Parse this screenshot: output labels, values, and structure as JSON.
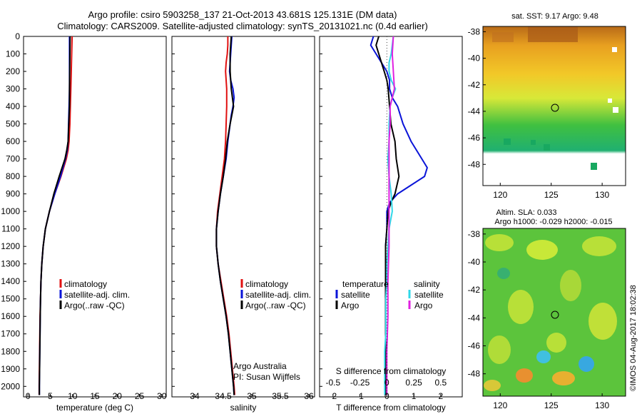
{
  "header": {
    "line1": "Argo profile: csiro 5903258_137 21-Oct-2013 43.681S 125.131E (DM data)",
    "line2": "Climatology: CARS2009. Satellite-adjusted climatology: synTS_20131021.nc (0.4d earlier)"
  },
  "colors": {
    "climatology": "#e01010",
    "satellite": "#0a14d8",
    "argo": "#000000",
    "sat_salinity": "#30d8e8",
    "argo_salinity": "#e020e0"
  },
  "depth_ticks": [
    "0",
    "100",
    "200",
    "300",
    "400",
    "500",
    "600",
    "700",
    "800",
    "900",
    "1000",
    "1100",
    "1200",
    "1300",
    "1400",
    "1500",
    "1600",
    "1700",
    "1800",
    "1900",
    "2000"
  ],
  "legend": {
    "climatology": "climatology",
    "satellite": "satellite-adj. clim.",
    "argo": "Argo(..raw -QC)"
  },
  "diff_legend": {
    "temperature": "temperature",
    "salinity": "salinity",
    "satellite": "satellite",
    "argo": "Argo"
  },
  "annotation": {
    "line1": "Argo Australia",
    "line2": "PI: Susan Wijffels"
  },
  "map_sst": {
    "title": "sat. SST: 9.17 Argo: 9.48",
    "yticks": [
      "-38",
      "-40",
      "-42",
      "-44",
      "-46",
      "-48"
    ],
    "xticks": [
      "120",
      "125",
      "130"
    ]
  },
  "map_sla": {
    "title1": "Altim. SLA: 0.033",
    "title2": "Argo h1000: -0.029 h2000: -0.015",
    "yticks": [
      "-38",
      "-40",
      "-42",
      "-44",
      "-46",
      "-48"
    ],
    "xticks": [
      "120",
      "125",
      "130"
    ]
  },
  "credit": "©IMOS 04-Aug-2017 18:02:38",
  "chart_data": [
    {
      "type": "line",
      "xlabel": "temperature (deg C)",
      "xlim": [
        -1,
        31
      ],
      "ylim": [
        2060,
        0
      ],
      "xticks": [
        "0",
        "5",
        "10",
        "15",
        "20",
        "25",
        "30"
      ],
      "series": [
        {
          "name": "climatology",
          "depth": [
            0,
            100,
            200,
            300,
            400,
            500,
            600,
            650,
            700,
            800,
            900,
            1000,
            1100,
            1200,
            1300,
            1400,
            1500,
            1600,
            1700,
            1800,
            1900,
            2000,
            2050
          ],
          "values": [
            9.9,
            9.8,
            9.7,
            9.6,
            9.5,
            9.4,
            9.2,
            9.0,
            8.6,
            7.4,
            6.0,
            4.8,
            3.9,
            3.4,
            3.1,
            2.9,
            2.8,
            2.7,
            2.65,
            2.6,
            2.55,
            2.5,
            2.5
          ]
        },
        {
          "name": "satellite-adj. clim.",
          "depth": [
            0,
            100,
            200,
            300,
            400,
            500,
            600,
            650,
            700,
            800,
            900,
            1000,
            1100,
            1200,
            1300,
            1400,
            1500,
            1600,
            1700,
            1800,
            1900,
            2000,
            2050
          ],
          "values": [
            9.3,
            9.3,
            9.3,
            9.3,
            9.2,
            9.1,
            9.0,
            8.8,
            8.4,
            7.3,
            6.0,
            4.8,
            3.9,
            3.4,
            3.1,
            2.9,
            2.8,
            2.75,
            2.7,
            2.65,
            2.6,
            2.55,
            2.55
          ]
        },
        {
          "name": "Argo(..raw -QC)",
          "depth": [
            0,
            100,
            200,
            300,
            400,
            500,
            600,
            650,
            700,
            800,
            900,
            1000,
            1100,
            1200,
            1300,
            1400,
            1500,
            1600,
            1700,
            1800,
            1900,
            2000,
            2050
          ],
          "values": [
            9.45,
            9.4,
            9.35,
            9.3,
            9.3,
            9.15,
            9.0,
            8.7,
            8.3,
            7.0,
            5.8,
            4.8,
            3.9,
            3.4,
            3.1,
            2.9,
            2.8,
            2.75,
            2.7,
            2.65,
            2.6,
            2.55,
            2.55
          ]
        }
      ]
    },
    {
      "type": "line",
      "xlabel": "salinity",
      "xlim": [
        33.6,
        36.1
      ],
      "ylim": [
        2060,
        0
      ],
      "xticks": [
        "34",
        "34.5",
        "35",
        "35.5",
        "36"
      ],
      "series": [
        {
          "name": "climatology",
          "depth": [
            0,
            50,
            100,
            150,
            200,
            300,
            400,
            500,
            600,
            700,
            800,
            900,
            1000,
            1100,
            1200,
            1300,
            1400,
            1500,
            1600,
            1700,
            1800,
            1900,
            2000,
            2050
          ],
          "values": [
            34.58,
            34.58,
            34.57,
            34.55,
            34.54,
            34.56,
            34.56,
            34.55,
            34.54,
            34.52,
            34.48,
            34.44,
            34.4,
            34.38,
            34.38,
            34.41,
            34.46,
            34.51,
            34.56,
            34.6,
            34.63,
            34.66,
            34.69,
            34.7
          ]
        },
        {
          "name": "satellite-adj. clim.",
          "depth": [
            0,
            50,
            100,
            150,
            200,
            250,
            300,
            350,
            400,
            450,
            500,
            600,
            700,
            800,
            900,
            1000,
            1100,
            1200,
            1300,
            1400,
            1500,
            1600,
            1700,
            1800,
            1900,
            2000,
            2050
          ],
          "values": [
            34.65,
            34.64,
            34.63,
            34.62,
            34.61,
            34.63,
            34.67,
            34.69,
            34.67,
            34.64,
            34.62,
            34.58,
            34.55,
            34.5,
            34.45,
            34.41,
            34.38,
            34.38,
            34.41,
            34.45,
            34.5,
            34.55,
            34.59,
            34.62,
            34.65,
            34.68,
            34.69
          ]
        },
        {
          "name": "Argo(..raw -QC)",
          "depth": [
            0,
            50,
            100,
            150,
            200,
            300,
            350,
            400,
            450,
            500,
            600,
            700,
            800,
            900,
            1000,
            1100,
            1200,
            1300,
            1400,
            1500,
            1600,
            1700,
            1800,
            1900,
            2000,
            2050
          ],
          "values": [
            34.64,
            34.63,
            34.62,
            34.62,
            34.62,
            34.64,
            34.66,
            34.68,
            34.65,
            34.62,
            34.57,
            34.54,
            34.5,
            34.45,
            34.41,
            34.38,
            34.38,
            34.41,
            34.45,
            34.5,
            34.55,
            34.59,
            34.62,
            34.65,
            34.68,
            34.69
          ]
        }
      ]
    },
    {
      "type": "line",
      "xlabel": "T difference from climatology",
      "xlabel_top": "S difference from climatology",
      "xlim": [
        -2.5,
        2.8
      ],
      "ylim": [
        2060,
        0
      ],
      "xticks": [
        "-2",
        "-1",
        "0",
        "1",
        "2"
      ],
      "xticks_top": [
        "-0.5",
        "-0.25",
        "0",
        "0.25",
        "0.5"
      ],
      "series": [
        {
          "name": "temperature satellite",
          "depth": [
            0,
            50,
            100,
            150,
            200,
            250,
            300,
            350,
            400,
            450,
            500,
            600,
            700,
            750,
            800,
            850,
            900,
            950,
            1000,
            1100,
            1200,
            1300,
            1400,
            1500,
            1600,
            1700,
            1800,
            1900,
            2000,
            2050
          ],
          "values": [
            -0.5,
            -0.6,
            -0.4,
            -0.2,
            0,
            0.1,
            0.1,
            0.2,
            0.4,
            0.5,
            0.6,
            0.9,
            1.3,
            1.5,
            1.4,
            0.9,
            0.4,
            0.1,
            0,
            0,
            -0.05,
            -0.05,
            -0.05,
            -0.05,
            -0.05,
            -0.05,
            -0.05,
            -0.05,
            -0.05,
            -0.05
          ]
        },
        {
          "name": "temperature Argo",
          "depth": [
            0,
            50,
            100,
            150,
            200,
            250,
            300,
            400,
            500,
            600,
            700,
            800,
            900,
            950,
            1000,
            1100,
            1200,
            1300,
            1400,
            1500,
            1600,
            1700,
            1800,
            1900,
            2000,
            2050
          ],
          "values": [
            -0.3,
            -0.4,
            -0.3,
            -0.2,
            -0.1,
            0,
            0.05,
            0.1,
            0.15,
            0.3,
            0.35,
            0.45,
            0.3,
            0.15,
            0.05,
            0,
            -0.05,
            -0.05,
            -0.05,
            -0.05,
            -0.05,
            -0.05,
            -0.05,
            -0.05,
            -0.05,
            -0.05
          ]
        },
        {
          "name": "salinity satellite",
          "depth": [
            0,
            50,
            100,
            150,
            200,
            250,
            300,
            350,
            400,
            500,
            600,
            700,
            800,
            900,
            1000,
            1100,
            1200,
            1300,
            1400,
            1500,
            1600,
            1700,
            1800,
            1900,
            2000,
            2050
          ],
          "values": [
            0.06,
            0.05,
            0.04,
            0.02,
            0.02,
            0.04,
            0.08,
            0.05,
            0.03,
            0.02,
            0.02,
            0.01,
            0.02,
            0.04,
            0.05,
            0.02,
            0.01,
            0,
            0,
            -0.01,
            -0.01,
            -0.01,
            -0.02,
            -0.02,
            -0.02,
            -0.02
          ]
        },
        {
          "name": "salinity Argo",
          "depth": [
            0,
            100,
            200,
            300,
            400,
            500,
            600,
            800,
            1000,
            1200,
            1400,
            1600,
            1800,
            2000,
            2050
          ],
          "values": [
            0.06,
            0.05,
            0.06,
            0.07,
            0.03,
            0.03,
            0.02,
            0.02,
            0.02,
            0.02,
            0.01,
            0.01,
            0,
            0,
            0
          ]
        }
      ]
    }
  ]
}
